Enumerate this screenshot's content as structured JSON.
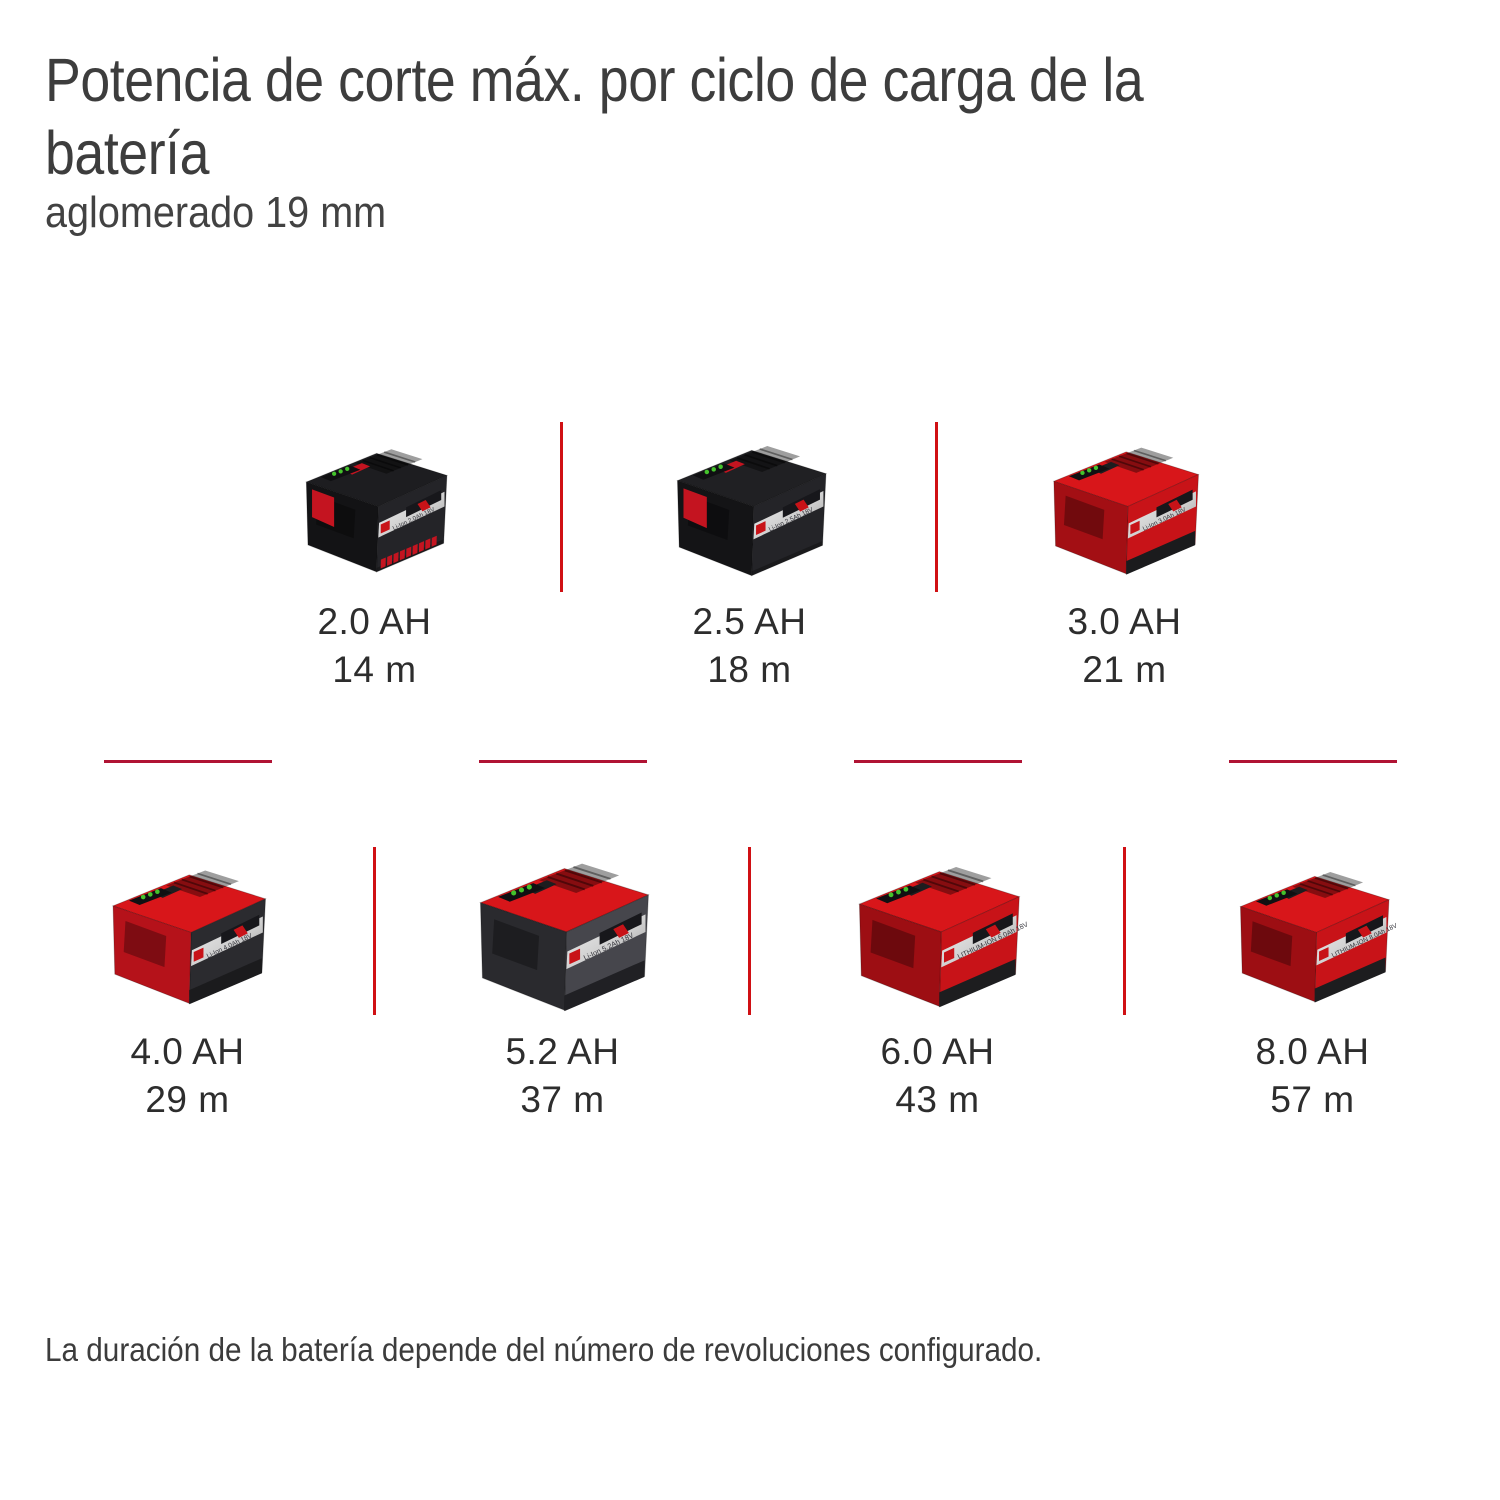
{
  "page": {
    "title_line1": "Potencia de corte máx. por ciclo de carga de la",
    "title_line2": "batería",
    "subtitle": "aglomerado 19 mm",
    "footnote": "La duración de la batería depende del número de revoluciones configurado.",
    "background": "#ffffff"
  },
  "colors": {
    "title_text": "#3d3d3d",
    "label_text": "#2d2d2d",
    "divider_vertical_red": "#d01014",
    "divider_horizontal_red": "#b01334",
    "brand_red": "#c81318",
    "led_green": "#44c32c"
  },
  "batteries": [
    {
      "icon": "battery-2.0ah-icon",
      "capacity": "2.0 AH",
      "distance": "14 m",
      "row": 1,
      "style": {
        "top": "#1d1d20",
        "body": "#242428",
        "left": "#131315",
        "band": null,
        "ribs": true,
        "pad": "#c41420",
        "stripe_text": "Li-Ion 2.0Ah 18V"
      }
    },
    {
      "icon": "battery-2.5ah-icon",
      "capacity": "2.5 AH",
      "distance": "18 m",
      "row": 1,
      "style": {
        "top": "#202023",
        "body": "#242428",
        "left": "#141416",
        "band": null,
        "ribs": false,
        "pad": "#c41420",
        "stripe_text": "Li-Ion 2.5Ah 18V"
      }
    },
    {
      "icon": "battery-3.0ah-icon",
      "capacity": "3.0 AH",
      "distance": "21 m",
      "row": 1,
      "style": {
        "top": "#d8161a",
        "body": "#c81318",
        "left": "#a30f14",
        "band": "#1b1b1d",
        "ribs": false,
        "pad": null,
        "stripe_text": "Li-Ion 3.0Ah 18V"
      }
    },
    {
      "icon": "battery-4.0ah-icon",
      "capacity": "4.0 AH",
      "distance": "29 m",
      "row": 2,
      "style": {
        "top": "#d8161a",
        "body": "#2b2b2f",
        "left": "#b5121a",
        "band": "#1b1b1d",
        "ribs": false,
        "pad": null,
        "stripe_text": "Li-Ion 4.0Ah 18V"
      }
    },
    {
      "icon": "battery-5.2ah-icon",
      "capacity": "5.2 AH",
      "distance": "37 m",
      "row": 2,
      "style": {
        "top": "#d8161a",
        "body": "#46464c",
        "left": "#2a2a2e",
        "band": "#202024",
        "ribs": false,
        "pad": null,
        "stripe_text": "Li-Ion 5.2Ah 18V"
      }
    },
    {
      "icon": "battery-6.0ah-icon",
      "capacity": "6.0 AH",
      "distance": "43 m",
      "row": 2,
      "style": {
        "top": "#d8161a",
        "body": "#c81318",
        "left": "#9d0e13",
        "band": "#1d1d1f",
        "ribs": false,
        "pad": null,
        "stripe_text": "LITHIUM-ION 6.0Ah 18V"
      }
    },
    {
      "icon": "battery-8.0ah-icon",
      "capacity": "8.0 AH",
      "distance": "57 m",
      "row": 2,
      "style": {
        "top": "#d8161a",
        "body": "#c81318",
        "left": "#9d0e13",
        "band": "#1d1d1f",
        "ribs": false,
        "pad": null,
        "stripe_text": "LITHIUM-ION 8.0Ah 18V"
      }
    }
  ]
}
